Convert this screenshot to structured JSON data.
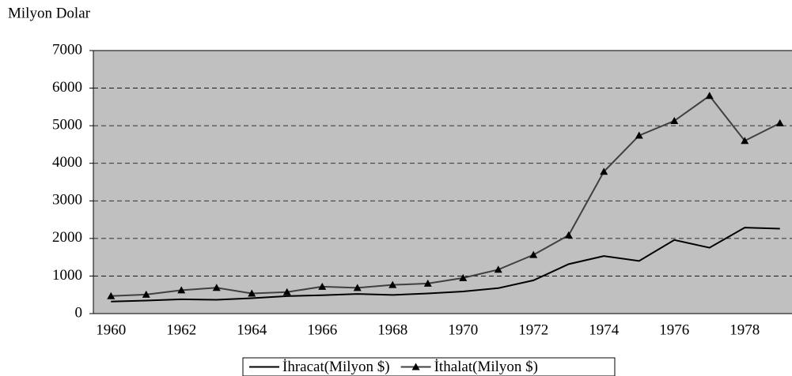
{
  "chart_data": {
    "type": "line",
    "y_label": "Milyon Dolar",
    "categories": [
      "1960",
      null,
      "1962",
      null,
      "1964",
      null,
      "1966",
      null,
      "1968",
      null,
      "1970",
      null,
      "1972",
      null,
      "1974",
      null,
      "1976",
      null,
      "1978",
      null
    ],
    "series": [
      {
        "name": "İhracat(Milyon $)",
        "color": "#000000",
        "marker": "none",
        "values": [
          321,
          347,
          381,
          368,
          411,
          464,
          490,
          523,
          496,
          537,
          588,
          677,
          885,
          1317,
          1532,
          1401,
          1960,
          1753,
          2288,
          2261
        ]
      },
      {
        "name": "İthalat(Milyon $)",
        "color": "#404040",
        "marker": "triangle",
        "values": [
          468,
          507,
          622,
          688,
          537,
          572,
          718,
          685,
          764,
          801,
          948,
          1171,
          1563,
          2086,
          3778,
          4739,
          5129,
          5796,
          4599,
          5069
        ]
      }
    ],
    "ylim": [
      0,
      7000
    ],
    "yticks": [
      0,
      1000,
      2000,
      3000,
      4000,
      5000,
      6000,
      7000
    ],
    "grid": true,
    "legend": "bottom"
  }
}
